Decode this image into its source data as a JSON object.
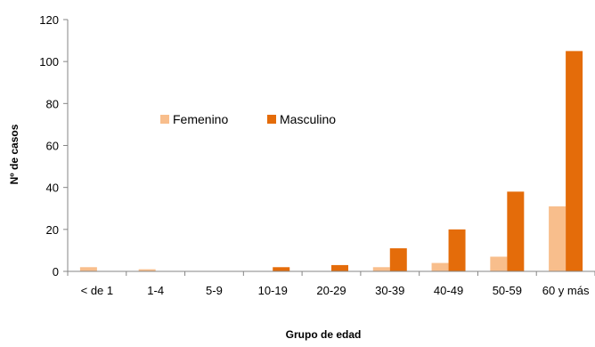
{
  "chart_data": {
    "type": "bar",
    "title": "",
    "xlabel": "Grupo de edad",
    "ylabel": "Nº de casos",
    "ylim": [
      0,
      120
    ],
    "yticks": [
      0,
      20,
      40,
      60,
      80,
      100,
      120
    ],
    "categories": [
      "< de 1",
      "1-4",
      "5-9",
      "10-19",
      "20-29",
      "30-39",
      "40-49",
      "50-59",
      "60 y más"
    ],
    "series": [
      {
        "name": "Femenino",
        "color": "#F8BE8C",
        "values": [
          2,
          1,
          0,
          0,
          0,
          2,
          4,
          7,
          31
        ]
      },
      {
        "name": "Masculino",
        "color": "#E46C0A",
        "values": [
          0,
          0,
          0,
          2,
          3,
          11,
          20,
          38,
          105
        ]
      }
    ],
    "legend_position": "upper-middle",
    "grid": false
  }
}
